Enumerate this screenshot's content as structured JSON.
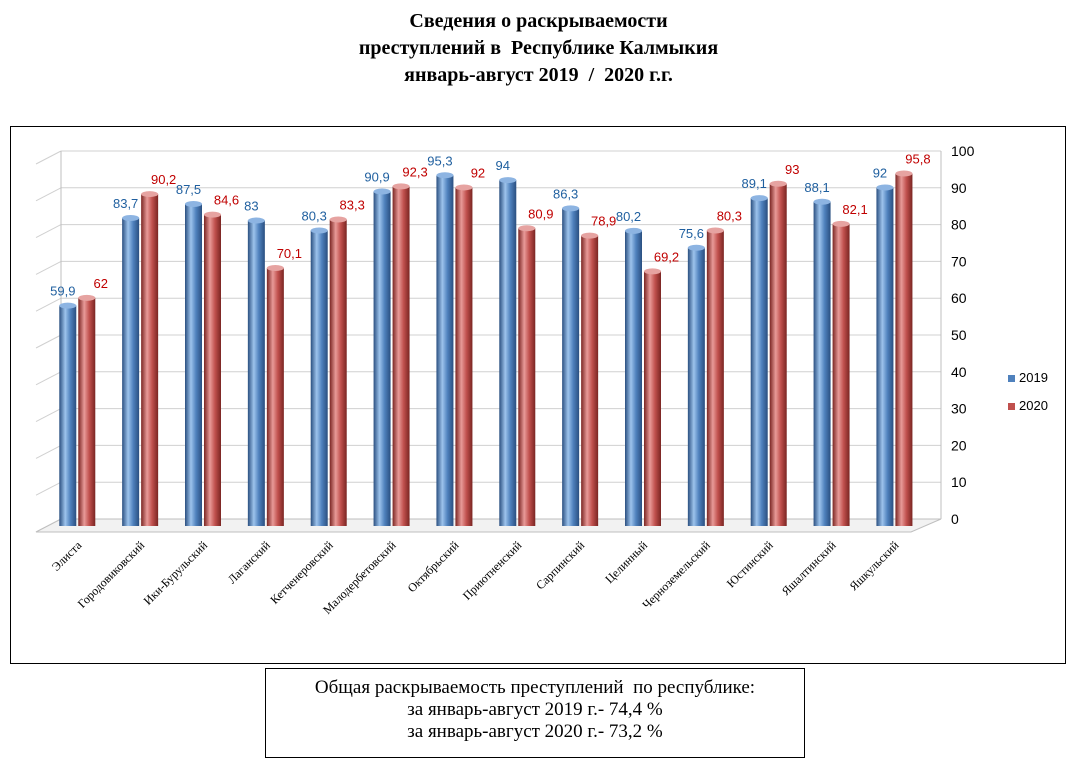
{
  "title": {
    "line1": "Сведения о раскрываемости",
    "line2": "преступлений в  Республике Калмыкия",
    "line3": "январь-август 2019  /  2020 г.г."
  },
  "summary": {
    "line1": "Общая раскрываемость преступлений  по республике:",
    "line2": "за январь-август 2019 г.- 74,4 %",
    "line3": "за январь-август 2020 г.- 73,2 %"
  },
  "colors": {
    "series_2019": "#4f81bd",
    "series_2020": "#c0504d",
    "label_2019": "#1f5f9f",
    "label_2020": "#c00000"
  },
  "chart_data": {
    "type": "bar",
    "title": "Сведения о раскрываемости преступлений в Республике Калмыкия январь-август 2019 / 2020 г.г.",
    "xlabel": "",
    "ylabel": "",
    "ylim": [
      0,
      100
    ],
    "yticks": [
      0,
      10,
      20,
      30,
      40,
      50,
      60,
      70,
      80,
      90,
      100
    ],
    "grid": true,
    "legend_position": "right",
    "categories": [
      "Элиста",
      "Городовиковский",
      "Ики-Бурульский",
      "Лаганский",
      "Кетченеровский",
      "Малодербетовский",
      "Октябрьский",
      "Приютненский",
      "Сарпинский",
      "Целинный",
      "Черноземельский",
      "Юстинский",
      "Яшалтинский",
      "Яшкульский"
    ],
    "series": [
      {
        "name": "2019",
        "values": [
          59.9,
          83.7,
          87.5,
          83,
          80.3,
          90.9,
          95.3,
          94,
          86.3,
          80.2,
          75.6,
          89.1,
          88.1,
          92
        ],
        "labels": [
          "59,9",
          "83,7",
          "87,5",
          "83",
          "80,3",
          "90,9",
          "95,3",
          "94",
          "86,3",
          "80,2",
          "75,6",
          "89,1",
          "88,1",
          "92"
        ]
      },
      {
        "name": "2020",
        "values": [
          62,
          90.2,
          84.6,
          70.1,
          83.3,
          92.3,
          92,
          80.9,
          78.9,
          69.2,
          80.3,
          93,
          82.1,
          95.8
        ],
        "labels": [
          "62",
          "90,2",
          "84,6",
          "70,1",
          "83,3",
          "92,3",
          "92",
          "80,9",
          "78,9",
          "69,2",
          "80,3",
          "93",
          "82,1",
          "95,8"
        ]
      }
    ]
  }
}
